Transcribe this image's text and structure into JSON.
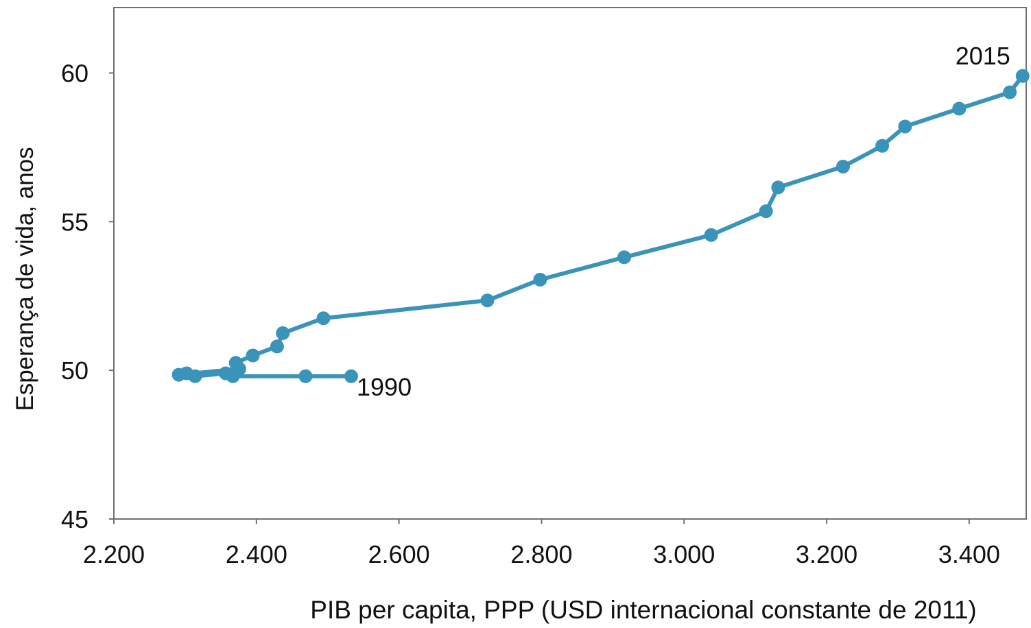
{
  "colors": {
    "series": "#3a93b8",
    "axis": "#6f6f6f",
    "text": "#111111"
  },
  "chart_data": {
    "type": "line",
    "title": "",
    "xlabel": "PIB per capita, PPP (USD internacional constante de 2011)",
    "ylabel": "Esperança de vida, anos",
    "xlim": [
      2200,
      3480
    ],
    "ylim": [
      45,
      62.2
    ],
    "x_ticks": [
      {
        "value": 2200,
        "label": "2.200"
      },
      {
        "value": 2400,
        "label": "2.400"
      },
      {
        "value": 2600,
        "label": "2.600"
      },
      {
        "value": 2800,
        "label": "2.800"
      },
      {
        "value": 3000,
        "label": "3.000"
      },
      {
        "value": 3200,
        "label": "3.200"
      },
      {
        "value": 3400,
        "label": "3.400"
      }
    ],
    "y_ticks": [
      {
        "value": 45,
        "label": "45"
      },
      {
        "value": 50,
        "label": "50"
      },
      {
        "value": 55,
        "label": "55"
      },
      {
        "value": 60,
        "label": "60"
      }
    ],
    "grid": false,
    "legend": "none",
    "series": [
      {
        "color": "#3a93b8",
        "points": [
          {
            "x": 2533,
            "y": 49.8
          },
          {
            "x": 2469,
            "y": 49.8
          },
          {
            "x": 2367,
            "y": 49.8
          },
          {
            "x": 2357,
            "y": 49.9
          },
          {
            "x": 2314,
            "y": 49.8
          },
          {
            "x": 2302,
            "y": 49.9
          },
          {
            "x": 2291,
            "y": 49.85
          },
          {
            "x": 2376,
            "y": 50.05
          },
          {
            "x": 2371,
            "y": 50.25
          },
          {
            "x": 2395,
            "y": 50.5
          },
          {
            "x": 2429,
            "y": 50.8
          },
          {
            "x": 2437,
            "y": 51.25
          },
          {
            "x": 2494,
            "y": 51.75
          },
          {
            "x": 2724,
            "y": 52.35
          },
          {
            "x": 2798,
            "y": 53.05
          },
          {
            "x": 2916,
            "y": 53.8
          },
          {
            "x": 3038,
            "y": 54.55
          },
          {
            "x": 3115,
            "y": 55.35
          },
          {
            "x": 3132,
            "y": 56.15
          },
          {
            "x": 3223,
            "y": 56.85
          },
          {
            "x": 3278,
            "y": 57.55
          },
          {
            "x": 3310,
            "y": 58.2
          },
          {
            "x": 3386,
            "y": 58.8
          },
          {
            "x": 3457,
            "y": 59.35
          },
          {
            "x": 3475,
            "y": 59.9
          }
        ]
      }
    ],
    "annotations": [
      {
        "text": "1990",
        "x": 2533,
        "y": 49.8
      },
      {
        "text": "2015",
        "x": 3475,
        "y": 59.9
      }
    ]
  }
}
